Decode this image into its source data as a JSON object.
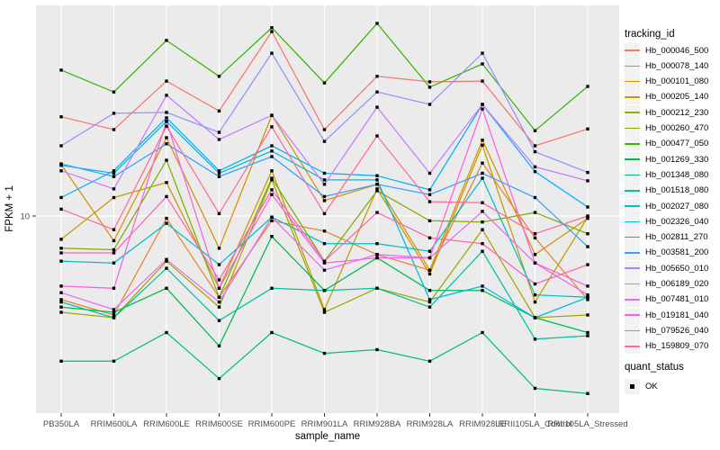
{
  "figure": {
    "background": "#FFFFFF",
    "panel_background": "#EBEBEB",
    "grid_color": "#FFFFFF",
    "point_color": "#000000",
    "tick_mark_color": "#333333",
    "tick_label_color": "#4D4D4D",
    "legend_key_fill": "#F2F2F2"
  },
  "chart_data": {
    "type": "line",
    "title": "",
    "xlabel": "sample_name",
    "ylabel": "FPKM + 1",
    "y_scale": "log10",
    "y_ticks": [
      10
    ],
    "y_tick_labels": [
      "10"
    ],
    "grid": "major",
    "legend_position": "right",
    "categories": [
      "PB350LA",
      "RRIM600LA",
      "RRIM600LE",
      "RRIM600SE",
      "RRIM600PE",
      "RRIM901LA",
      "RRIM928BA",
      "RRIM928LA",
      "RRIM928LE",
      "RRII105LA_Control",
      "RRII105LA_Stressed"
    ],
    "series": [
      {
        "name": "Hb_000046_500",
        "color": "#F8766D",
        "values": [
          23.3,
          20.9,
          31.6,
          24.5,
          48.2,
          20.9,
          32.9,
          31.4,
          31.6,
          18.2,
          21.0
        ]
      },
      {
        "name": "Hb_000078_140",
        "color": "#EA8331",
        "values": [
          4.9,
          4.3,
          9.8,
          5.0,
          9.6,
          8.8,
          7.2,
          6.3,
          15.7,
          8.3,
          4.9
        ]
      },
      {
        "name": "Hb_000101_080",
        "color": "#D89000",
        "values": [
          15.5,
          8.1,
          19.5,
          7.6,
          23.6,
          11.4,
          13.1,
          6.3,
          19.1,
          7.2,
          9.8
        ]
      },
      {
        "name": "Hb_000205_140",
        "color": "#C09B00",
        "values": [
          8.2,
          11.7,
          13.3,
          5.4,
          14.7,
          4.5,
          12.6,
          6.1,
          18.3,
          4.8,
          9.9
        ]
      },
      {
        "name": "Hb_000212_230",
        "color": "#A3A500",
        "values": [
          4.4,
          4.2,
          6.8,
          4.6,
          13.6,
          4.4,
          5.4,
          4.8,
          8.9,
          4.2,
          4.3
        ]
      },
      {
        "name": "Hb_000260_470",
        "color": "#7CAE00",
        "values": [
          7.6,
          7.5,
          16.1,
          5.0,
          13.8,
          6.8,
          12.4,
          9.6,
          9.5,
          10.3,
          8.6
        ]
      },
      {
        "name": "Hb_000477_050",
        "color": "#39B600",
        "values": [
          34.7,
          28.8,
          44.7,
          32.9,
          49.8,
          31.1,
          51.7,
          30.0,
          36.6,
          20.7,
          30.2
        ]
      },
      {
        "name": "Hb_001269_330",
        "color": "#00BB4E",
        "values": [
          4.6,
          4.4,
          5.4,
          3.3,
          8.4,
          5.3,
          7.0,
          5.3,
          5.3,
          4.2,
          3.7
        ]
      },
      {
        "name": "Hb_001348_080",
        "color": "#00BF7D",
        "values": [
          2.9,
          2.9,
          3.7,
          2.5,
          3.7,
          3.1,
          3.2,
          2.9,
          3.7,
          2.3,
          2.2
        ]
      },
      {
        "name": "Hb_001518_080",
        "color": "#00C1A3",
        "values": [
          4.8,
          4.2,
          6.4,
          4.1,
          5.4,
          5.3,
          5.4,
          4.6,
          7.4,
          3.5,
          3.6
        ]
      },
      {
        "name": "Hb_002027_080",
        "color": "#00BFC4",
        "values": [
          6.8,
          6.7,
          9.4,
          6.6,
          9.9,
          7.9,
          7.9,
          7.4,
          13.8,
          5.1,
          5.0
        ]
      },
      {
        "name": "Hb_002326_040",
        "color": "#00BAE0",
        "values": [
          15.4,
          14.4,
          22.4,
          14.4,
          17.4,
          13.6,
          13.6,
          4.9,
          5.5,
          4.2,
          5.0
        ]
      },
      {
        "name": "Hb_002811_270",
        "color": "#00B0F6",
        "values": [
          11.7,
          14.7,
          23.1,
          14.7,
          18.2,
          14.4,
          14.1,
          12.5,
          25.9,
          14.6,
          10.8
        ]
      },
      {
        "name": "Hb_003581_200",
        "color": "#35A2FF",
        "values": [
          15.6,
          14.0,
          18.5,
          14.0,
          16.6,
          11.8,
          13.1,
          12.0,
          14.4,
          11.7,
          7.7
        ]
      },
      {
        "name": "Hb_005650_010",
        "color": "#9590FF",
        "values": [
          18.2,
          24.0,
          24.2,
          20.4,
          40.1,
          18.9,
          28.8,
          25.9,
          40.1,
          17.3,
          14.5
        ]
      },
      {
        "name": "Hb_006189_020",
        "color": "#C77CFF",
        "values": [
          14.7,
          12.6,
          28.0,
          19.2,
          23.6,
          13.1,
          25.3,
          14.4,
          25.9,
          15.2,
          13.5
        ]
      },
      {
        "name": "Hb_007481_010",
        "color": "#E76BF3",
        "values": [
          5.2,
          4.5,
          6.9,
          4.8,
          9.9,
          6.3,
          7.2,
          7.0,
          10.4,
          6.7,
          5.1
        ]
      },
      {
        "name": "Hb_019181_040",
        "color": "#FA62DB",
        "values": [
          5.5,
          5.4,
          22.4,
          5.4,
          12.0,
          6.7,
          7.0,
          7.0,
          24.9,
          6.7,
          5.5
        ]
      },
      {
        "name": "Hb_079526_040",
        "color": "#FF62BC",
        "values": [
          7.3,
          7.3,
          11.8,
          5.8,
          12.5,
          6.8,
          10.3,
          8.3,
          7.9,
          5.6,
          6.6
        ]
      },
      {
        "name": "Hb_159809_070",
        "color": "#FF6A98",
        "values": [
          10.6,
          8.9,
          21.5,
          10.2,
          21.4,
          10.2,
          19.8,
          11.3,
          11.2,
          8.6,
          10.0
        ]
      }
    ],
    "legend": {
      "color_title": "tracking_id",
      "shape_title": "quant_status",
      "shape_items": [
        {
          "label": "OK"
        }
      ]
    }
  }
}
